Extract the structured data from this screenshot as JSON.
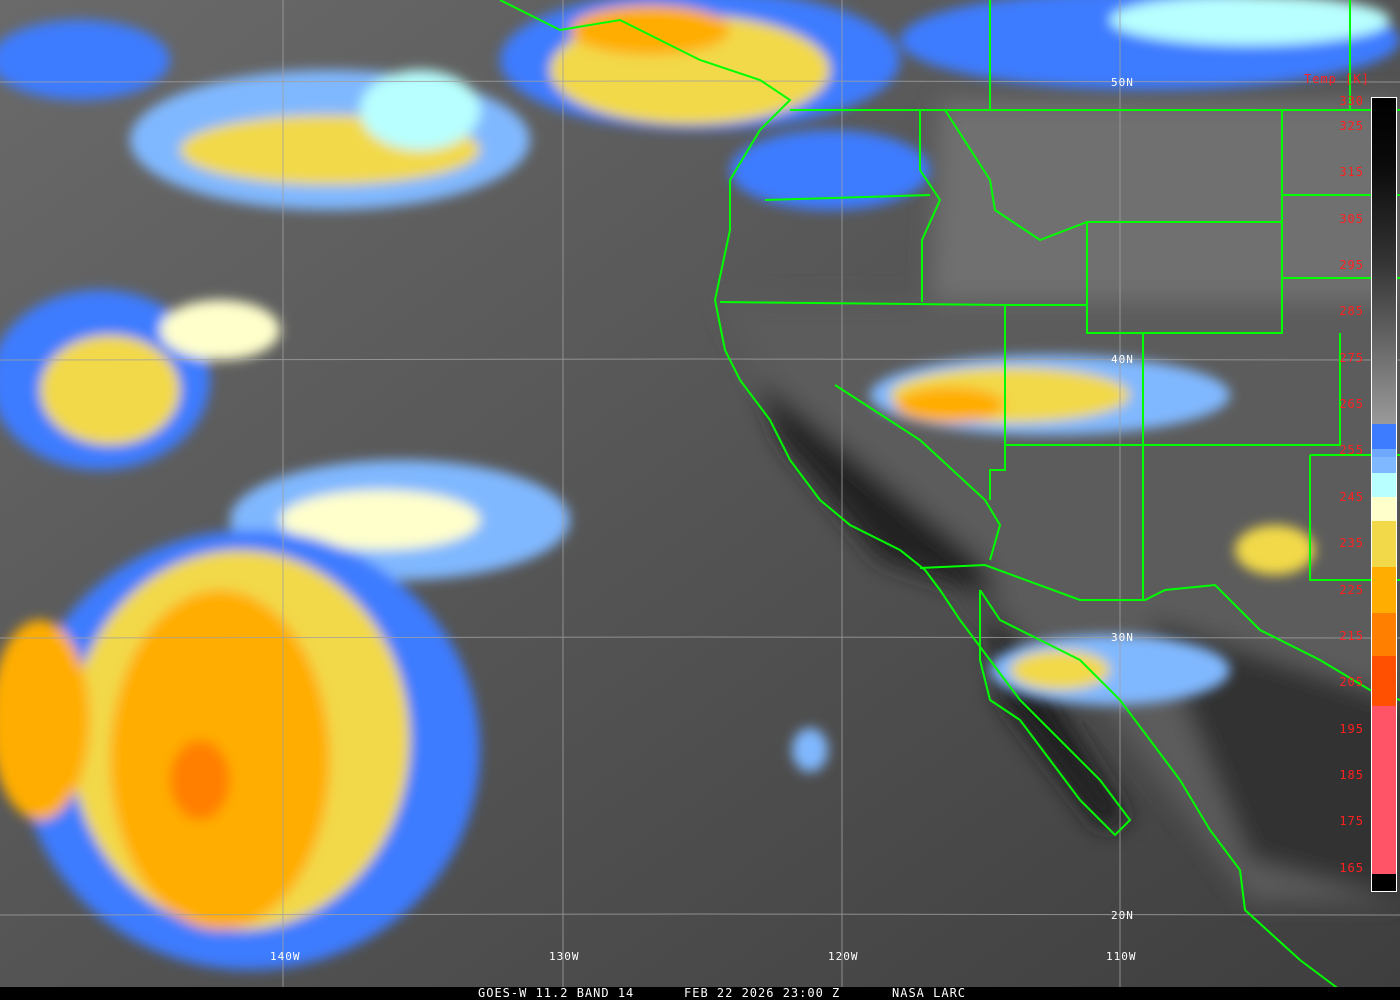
{
  "map": {
    "latitude_labels": [
      "50N",
      "40N",
      "30N",
      "20N"
    ],
    "longitude_labels": [
      "140W",
      "130W",
      "120W",
      "110W"
    ],
    "border_color": "#00ff00",
    "grid_color": "#a0a0a0"
  },
  "legend": {
    "title": "Temp [K]",
    "ticks": [
      "330",
      "325",
      "315",
      "305",
      "295",
      "285",
      "275",
      "265",
      "255",
      "245",
      "235",
      "225",
      "215",
      "205",
      "195",
      "185",
      "175",
      "165"
    ],
    "label_color": "#ff2020",
    "color_stops": [
      {
        "from_k": 330,
        "to_k": 258,
        "color": "gray gradient black-to-light"
      },
      {
        "color": "#3d7cff"
      },
      {
        "color": "#6fa8ff"
      },
      {
        "color": "#80b8ff"
      },
      {
        "color": "#b8ffff"
      },
      {
        "color": "#ffffcc"
      },
      {
        "color": "#f2d94a"
      },
      {
        "color": "#ffad00"
      },
      {
        "color": "#ff7f00"
      },
      {
        "color": "#ff4f00"
      },
      {
        "color": "#ff5468"
      }
    ]
  },
  "footer": {
    "product": "GOES-W 11.2 BAND 14",
    "datetime": "FEB 22 2026 23:00 Z",
    "credit": "NASA LARC"
  }
}
